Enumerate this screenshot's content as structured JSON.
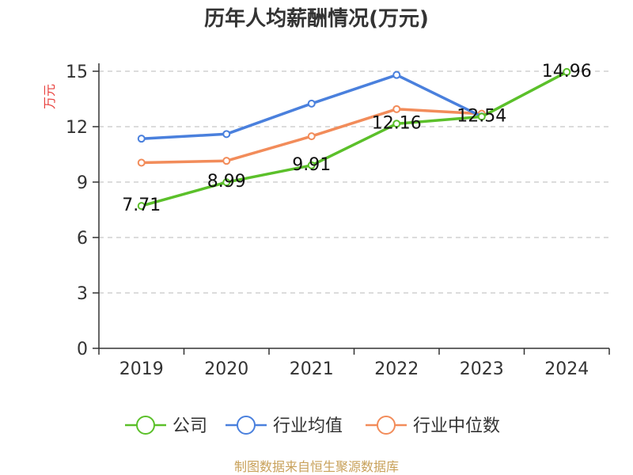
{
  "chart_data": {
    "type": "line",
    "title": "历年人均薪酬情况(万元)",
    "ylabel": "万元",
    "categories": [
      "2019",
      "2020",
      "2021",
      "2022",
      "2023",
      "2024"
    ],
    "yticks": [
      "0",
      "3",
      "6",
      "9",
      "12",
      "15"
    ],
    "ylim": [
      0,
      15
    ],
    "grid": true,
    "legend_position": "bottom",
    "series": [
      {
        "name": "公司",
        "color": "#5bc02a",
        "values": [
          7.71,
          8.99,
          9.91,
          12.16,
          12.54,
          14.96
        ],
        "labels": [
          "7.71",
          "8.99",
          "9.91",
          "12.16",
          "12.54",
          "14.96"
        ]
      },
      {
        "name": "行业均值",
        "color": "#4a80dd",
        "values": [
          11.35,
          11.6,
          13.25,
          14.8,
          12.55,
          null
        ]
      },
      {
        "name": "行业中位数",
        "color": "#f28c5a",
        "values": [
          10.05,
          10.15,
          11.48,
          12.95,
          12.7,
          null
        ]
      }
    ]
  },
  "source": "制图数据来自恒生聚源数据库"
}
